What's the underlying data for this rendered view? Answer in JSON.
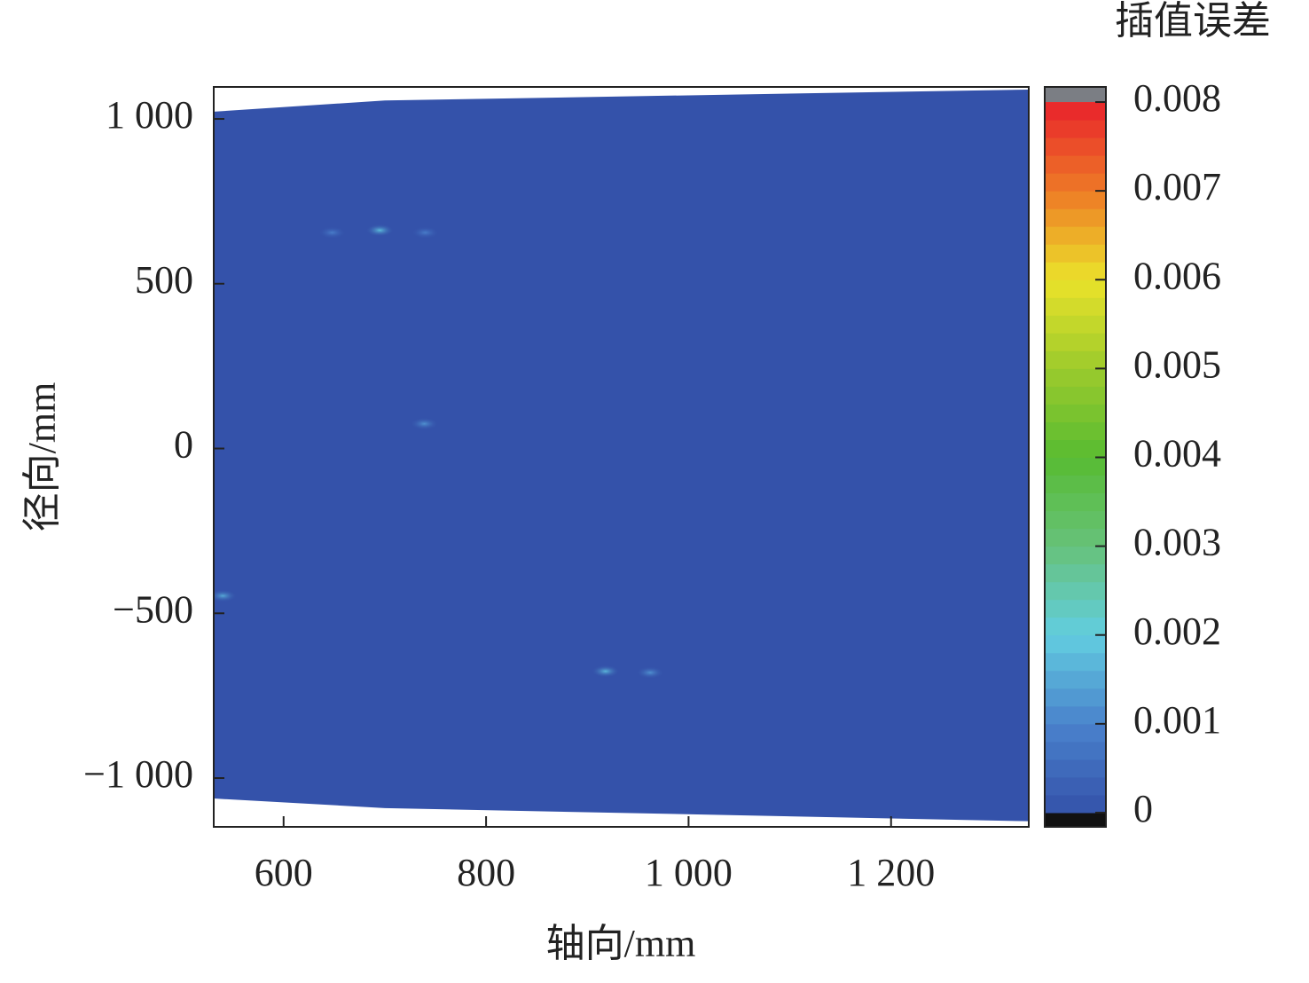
{
  "chart_data": {
    "type": "contour",
    "xlabel": "轴向/mm",
    "ylabel": "径向/mm",
    "colorbar_label": "插值误差",
    "xlim": [
      531,
      1336
    ],
    "ylim": [
      -1148,
      1097
    ],
    "xticks": [
      600,
      800,
      {
        "value": 1000,
        "label": "1 000"
      },
      {
        "value": 1200,
        "label": "1 200"
      }
    ],
    "yticks": [
      {
        "value": -1000,
        "label": "−1 000"
      },
      {
        "value": -500,
        "label": "−500"
      },
      0,
      500,
      {
        "value": 1000,
        "label": "1 000"
      }
    ],
    "boundary_top": {
      "x": [
        531,
        700,
        1336
      ],
      "y": [
        1022,
        1056,
        1089
      ]
    },
    "boundary_bottom": {
      "x": [
        531,
        700,
        1336
      ],
      "y": [
        -1062,
        -1091,
        -1131
      ]
    },
    "hotspots": {
      "x": [
        695,
        918,
        540,
        739,
        962,
        648,
        740
      ],
      "y": [
        662,
        -676,
        -447,
        75,
        -680,
        655,
        655
      ],
      "values": [
        0.0018,
        0.0017,
        0.0015,
        0.0012,
        0.0012,
        0.0009,
        0.0009
      ]
    },
    "clim": [
      -0.00016,
      0.00817
    ],
    "cticks": [
      0,
      0.001,
      0.002,
      0.003,
      0.004,
      0.005,
      0.006,
      0.007,
      0.008
    ],
    "level_step": 0.0002,
    "colormap": [
      {
        "value": 0,
        "color": "#3452aa"
      },
      {
        "value": 0.001,
        "color": "#4a82cc"
      },
      {
        "value": 0.002,
        "color": "#62cde0"
      },
      {
        "value": 0.003,
        "color": "#66c27a"
      },
      {
        "value": 0.004,
        "color": "#58bb32"
      },
      {
        "value": 0.005,
        "color": "#9ccb2c"
      },
      {
        "value": 0.006,
        "color": "#ebe22a"
      },
      {
        "value": 0.007,
        "color": "#ee7a26"
      },
      {
        "value": 0.008,
        "color": "#e8222b"
      }
    ],
    "under_color": "#111111",
    "over_color": "#7b7e84"
  }
}
